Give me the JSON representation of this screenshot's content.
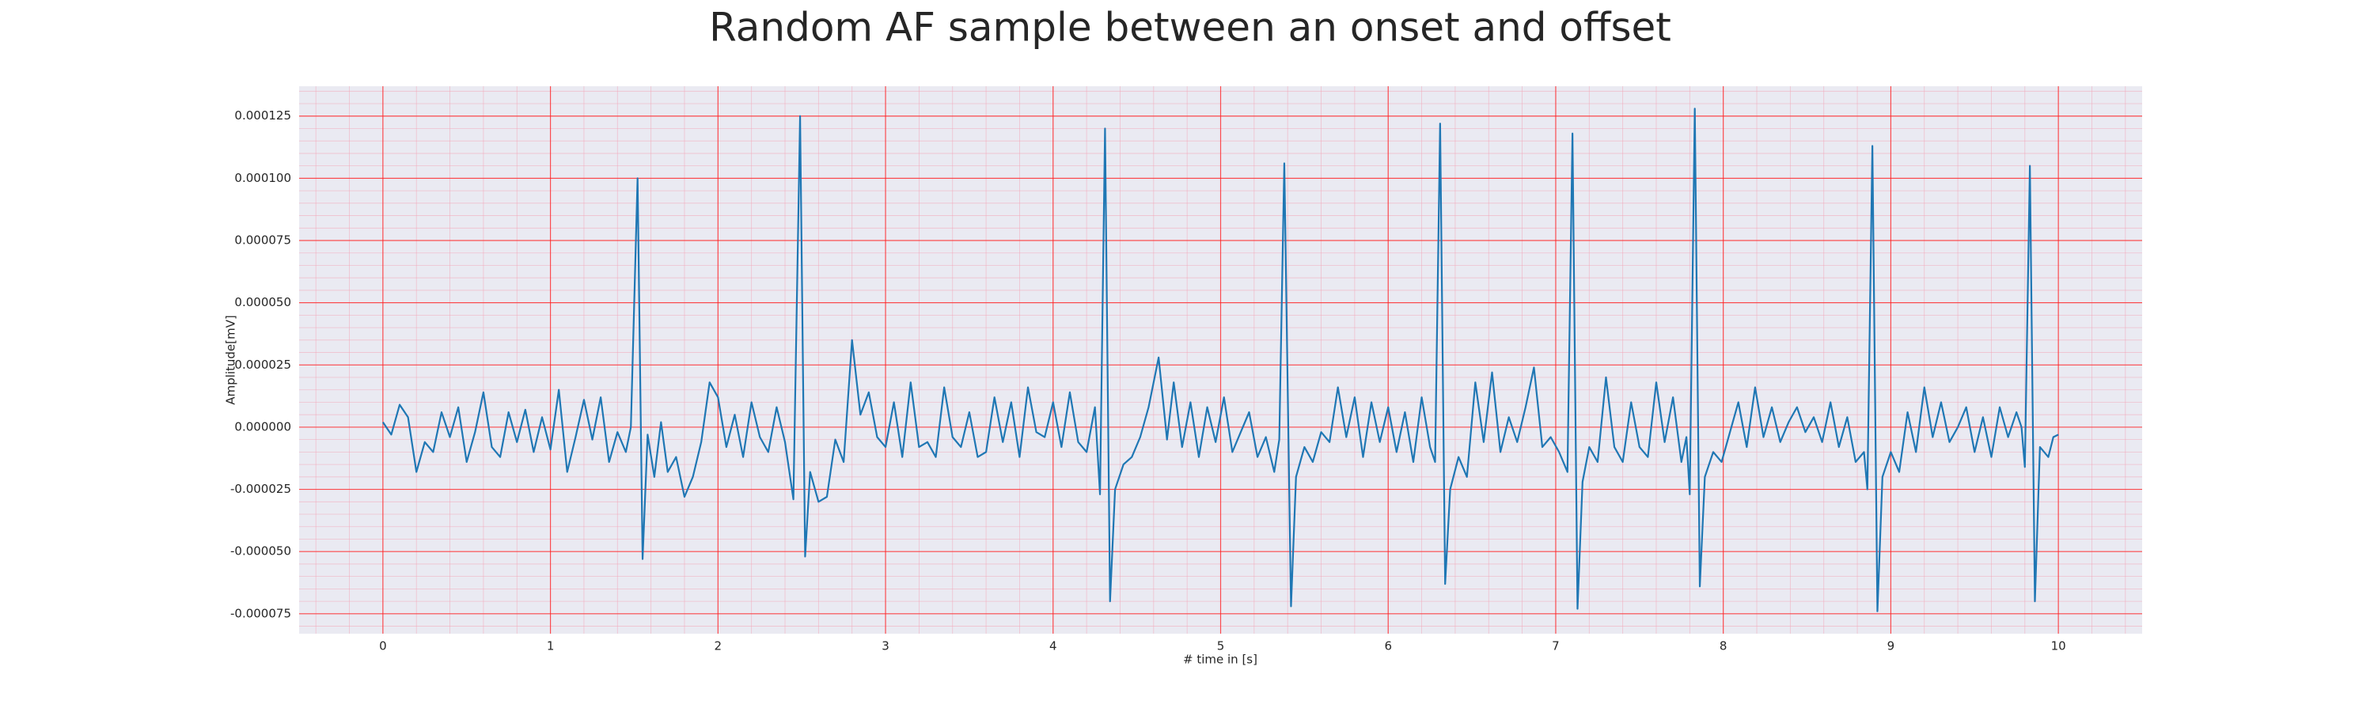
{
  "chart_data": {
    "type": "line",
    "title": "Random AF sample between an onset and offset",
    "xlabel": "# time in [s]",
    "ylabel": "Amplitude[mV]",
    "color": "#1f77b4",
    "grid": true,
    "xlim": [
      -0.5,
      10.5
    ],
    "ylim": [
      -8.3e-05,
      0.000137
    ],
    "xticks": [
      0,
      1,
      2,
      3,
      4,
      5,
      6,
      7,
      8,
      9,
      10
    ],
    "yticks": [
      -7.5e-05,
      {
        "value": -5e-05,
        "label": "-0.000050"
      },
      -2.5e-05,
      {
        "value": 0,
        "label": "0.000000"
      },
      2.5e-05,
      {
        "value": 5e-05,
        "label": "0.000050"
      },
      7.5e-05,
      {
        "value": 0.0001,
        "label": "0.000100"
      },
      0.000125
    ],
    "x": [
      0.0,
      0.05,
      0.1,
      0.15,
      0.2,
      0.25,
      0.3,
      0.35,
      0.4,
      0.45,
      0.5,
      0.55,
      0.6,
      0.65,
      0.7,
      0.75,
      0.8,
      0.85,
      0.9,
      0.95,
      1.0,
      1.05,
      1.1,
      1.15,
      1.2,
      1.25,
      1.3,
      1.35,
      1.4,
      1.45,
      1.48,
      1.52,
      1.55,
      1.58,
      1.62,
      1.66,
      1.7,
      1.75,
      1.8,
      1.85,
      1.9,
      1.95,
      2.0,
      2.05,
      2.1,
      2.15,
      2.2,
      2.25,
      2.3,
      2.35,
      2.4,
      2.45,
      2.49,
      2.52,
      2.55,
      2.6,
      2.65,
      2.7,
      2.75,
      2.8,
      2.85,
      2.9,
      2.95,
      3.0,
      3.05,
      3.1,
      3.15,
      3.2,
      3.25,
      3.3,
      3.35,
      3.4,
      3.45,
      3.5,
      3.55,
      3.6,
      3.65,
      3.7,
      3.75,
      3.8,
      3.85,
      3.9,
      3.95,
      4.0,
      4.05,
      4.1,
      4.15,
      4.2,
      4.25,
      4.28,
      4.31,
      4.34,
      4.37,
      4.42,
      4.47,
      4.52,
      4.57,
      4.63,
      4.68,
      4.72,
      4.77,
      4.82,
      4.87,
      4.92,
      4.97,
      5.02,
      5.07,
      5.12,
      5.17,
      5.22,
      5.27,
      5.32,
      5.35,
      5.38,
      5.42,
      5.45,
      5.5,
      5.55,
      5.6,
      5.65,
      5.7,
      5.75,
      5.8,
      5.85,
      5.9,
      5.95,
      6.0,
      6.05,
      6.1,
      6.15,
      6.2,
      6.25,
      6.28,
      6.31,
      6.34,
      6.37,
      6.42,
      6.47,
      6.52,
      6.57,
      6.62,
      6.67,
      6.72,
      6.77,
      6.82,
      6.87,
      6.92,
      6.97,
      7.02,
      7.07,
      7.1,
      7.13,
      7.16,
      7.2,
      7.25,
      7.3,
      7.35,
      7.4,
      7.45,
      7.5,
      7.55,
      7.6,
      7.65,
      7.7,
      7.75,
      7.78,
      7.8,
      7.83,
      7.86,
      7.89,
      7.94,
      7.99,
      8.04,
      8.09,
      8.14,
      8.19,
      8.24,
      8.29,
      8.34,
      8.39,
      8.44,
      8.49,
      8.54,
      8.59,
      8.64,
      8.69,
      8.74,
      8.79,
      8.84,
      8.86,
      8.89,
      8.92,
      8.95,
      9.0,
      9.05,
      9.1,
      9.15,
      9.2,
      9.25,
      9.3,
      9.35,
      9.4,
      9.45,
      9.5,
      9.55,
      9.6,
      9.65,
      9.7,
      9.75,
      9.78,
      9.8,
      9.83,
      9.86,
      9.89,
      9.94,
      9.97,
      10.0
    ],
    "values": [
      2e-06,
      -3e-06,
      9e-06,
      4e-06,
      -1.8e-05,
      -6e-06,
      -1e-05,
      6e-06,
      -4e-06,
      8e-06,
      -1.4e-05,
      -2e-06,
      1.4e-05,
      -8e-06,
      -1.2e-05,
      6e-06,
      -6e-06,
      7e-06,
      -1e-05,
      4e-06,
      -9e-06,
      1.5e-05,
      -1.8e-05,
      -4e-06,
      1.1e-05,
      -5e-06,
      1.2e-05,
      -1.4e-05,
      -2e-06,
      -1e-05,
      0,
      0.0001,
      -5.3e-05,
      -3e-06,
      -2e-05,
      2e-06,
      -1.8e-05,
      -1.2e-05,
      -2.8e-05,
      -2e-05,
      -6e-06,
      1.8e-05,
      1.2e-05,
      -8e-06,
      5e-06,
      -1.2e-05,
      1e-05,
      -4e-06,
      -1e-05,
      8e-06,
      -6e-06,
      -2.9e-05,
      0.000125,
      -5.2e-05,
      -1.8e-05,
      -3e-05,
      -2.8e-05,
      -5e-06,
      -1.4e-05,
      3.5e-05,
      5e-06,
      1.4e-05,
      -4e-06,
      -8e-06,
      1e-05,
      -1.2e-05,
      1.8e-05,
      -8e-06,
      -6e-06,
      -1.2e-05,
      1.6e-05,
      -4e-06,
      -8e-06,
      6e-06,
      -1.2e-05,
      -1e-05,
      1.2e-05,
      -6e-06,
      1e-05,
      -1.2e-05,
      1.6e-05,
      -2e-06,
      -4e-06,
      1e-05,
      -8e-06,
      1.4e-05,
      -6e-06,
      -1e-05,
      8e-06,
      -2.7e-05,
      0.00012,
      -7e-05,
      -2.5e-05,
      -1.5e-05,
      -1.2e-05,
      -4e-06,
      8e-06,
      2.8e-05,
      -5e-06,
      1.8e-05,
      -8e-06,
      1e-05,
      -1.2e-05,
      8e-06,
      -6e-06,
      1.2e-05,
      -1e-05,
      -2e-06,
      6e-06,
      -1.2e-05,
      -4e-06,
      -1.8e-05,
      -5e-06,
      0.000106,
      -7.2e-05,
      -2e-05,
      -8e-06,
      -1.4e-05,
      -2e-06,
      -6e-06,
      1.6e-05,
      -4e-06,
      1.2e-05,
      -1.2e-05,
      1e-05,
      -6e-06,
      8e-06,
      -1e-05,
      6e-06,
      -1.4e-05,
      1.2e-05,
      -8e-06,
      -1.4e-05,
      0.000122,
      -6.3e-05,
      -2.5e-05,
      -1.2e-05,
      -2e-05,
      1.8e-05,
      -6e-06,
      2.2e-05,
      -1e-05,
      4e-06,
      -6e-06,
      8e-06,
      2.4e-05,
      -8e-06,
      -4e-06,
      -1e-05,
      -1.8e-05,
      0.000118,
      -7.3e-05,
      -2.2e-05,
      -8e-06,
      -1.4e-05,
      2e-05,
      -8e-06,
      -1.4e-05,
      1e-05,
      -8e-06,
      -1.2e-05,
      1.8e-05,
      -6e-06,
      1.2e-05,
      -1.4e-05,
      -4e-06,
      -2.7e-05,
      0.000128,
      -6.4e-05,
      -2e-05,
      -1e-05,
      -1.4e-05,
      -2e-06,
      1e-05,
      -8e-06,
      1.6e-05,
      -4e-06,
      8e-06,
      -6e-06,
      2e-06,
      8e-06,
      -2e-06,
      4e-06,
      -6e-06,
      1e-05,
      -8e-06,
      4e-06,
      -1.4e-05,
      -1e-05,
      -2.5e-05,
      0.000113,
      -7.4e-05,
      -2e-05,
      -1e-05,
      -1.8e-05,
      6e-06,
      -1e-05,
      1.6e-05,
      -4e-06,
      1e-05,
      -6e-06,
      0,
      8e-06,
      -1e-05,
      4e-06,
      -1.2e-05,
      8e-06,
      -4e-06,
      6e-06,
      0,
      -1.6e-05,
      0.000105,
      -7e-05,
      -8e-06,
      -1.2e-05,
      -4e-06,
      -3e-06
    ]
  }
}
